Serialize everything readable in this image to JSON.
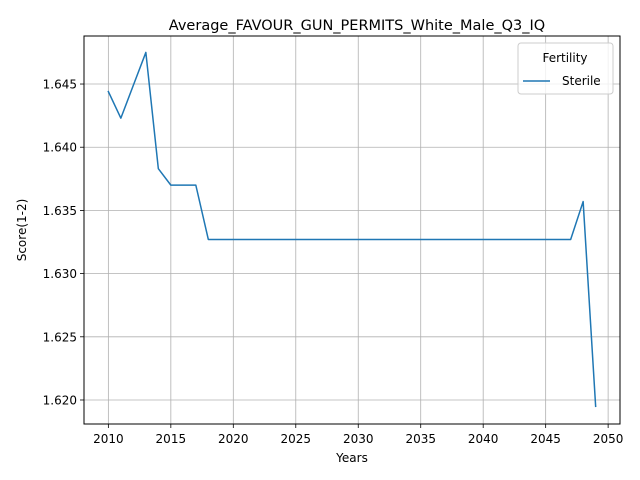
{
  "chart_data": {
    "type": "line",
    "title": "Average_FAVOUR_GUN_PERMITS_White_Male_Q3_IQ",
    "xlabel": "Years",
    "ylabel": "Score(1-2)",
    "xlim": [
      2008.05,
      2050.95
    ],
    "ylim": [
      1.6181,
      1.6488
    ],
    "xticks": [
      2010,
      2015,
      2020,
      2025,
      2030,
      2035,
      2040,
      2045,
      2050
    ],
    "yticks": [
      1.62,
      1.625,
      1.63,
      1.635,
      1.64,
      1.645
    ],
    "xtick_labels": [
      "2010",
      "2015",
      "2020",
      "2025",
      "2030",
      "2035",
      "2040",
      "2045",
      "2050"
    ],
    "ytick_labels": [
      "1.620",
      "1.625",
      "1.630",
      "1.635",
      "1.640",
      "1.645"
    ],
    "grid": true,
    "legend": {
      "title": "Fertility",
      "placement": "top-right"
    },
    "series": [
      {
        "name": "Sterile",
        "color": "#1f77b4",
        "x": [
          2010,
          2011,
          2012,
          2013,
          2014,
          2015,
          2016,
          2017,
          2018,
          2019,
          2020,
          2021,
          2022,
          2023,
          2024,
          2025,
          2026,
          2027,
          2028,
          2029,
          2030,
          2031,
          2032,
          2033,
          2034,
          2035,
          2036,
          2037,
          2038,
          2039,
          2040,
          2041,
          2042,
          2043,
          2044,
          2045,
          2046,
          2047,
          2048,
          2049
        ],
        "y": [
          1.6444,
          1.6423,
          1.6449,
          1.6475,
          1.6383,
          1.637,
          1.637,
          1.637,
          1.6327,
          1.6327,
          1.6327,
          1.6327,
          1.6327,
          1.6327,
          1.6327,
          1.6327,
          1.6327,
          1.6327,
          1.6327,
          1.6327,
          1.6327,
          1.6327,
          1.6327,
          1.6327,
          1.6327,
          1.6327,
          1.6327,
          1.6327,
          1.6327,
          1.6327,
          1.6327,
          1.6327,
          1.6327,
          1.6327,
          1.6327,
          1.6327,
          1.6327,
          1.6327,
          1.6357,
          1.6195
        ]
      }
    ]
  }
}
